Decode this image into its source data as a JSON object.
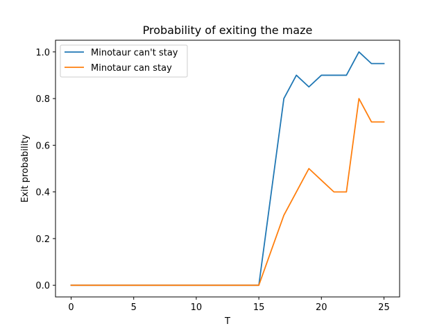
{
  "chart_data": {
    "type": "line",
    "title": "Probability of exiting the maze",
    "xlabel": "T",
    "ylabel": "Exit probability",
    "xlim": [
      -1.25,
      26.25
    ],
    "ylim": [
      -0.05,
      1.05
    ],
    "xticks": [
      0,
      5,
      10,
      15,
      20,
      25
    ],
    "yticks": [
      0.0,
      0.2,
      0.4,
      0.6,
      0.8,
      1.0
    ],
    "ytick_labels": [
      "0.0",
      "0.2",
      "0.4",
      "0.6",
      "0.8",
      "1.0"
    ],
    "grid": false,
    "legend_position": "upper left",
    "x": [
      0,
      1,
      2,
      3,
      4,
      5,
      6,
      7,
      8,
      9,
      10,
      11,
      12,
      13,
      14,
      15,
      16,
      17,
      18,
      19,
      20,
      21,
      22,
      23,
      24,
      25
    ],
    "series": [
      {
        "name": "Minotaur can't stay",
        "color": "#1f77b4",
        "values": [
          0,
          0,
          0,
          0,
          0,
          0,
          0,
          0,
          0,
          0,
          0,
          0,
          0,
          0,
          0,
          0,
          0.4,
          0.8,
          0.9,
          0.85,
          0.9,
          0.9,
          0.9,
          1.0,
          0.95,
          0.95
        ]
      },
      {
        "name": "Minotaur can stay",
        "color": "#ff7f0e",
        "values": [
          0,
          0,
          0,
          0,
          0,
          0,
          0,
          0,
          0,
          0,
          0,
          0,
          0,
          0,
          0,
          0,
          0.15,
          0.3,
          0.4,
          0.5,
          0.45,
          0.4,
          0.4,
          0.8,
          0.7,
          0.7
        ]
      }
    ]
  }
}
